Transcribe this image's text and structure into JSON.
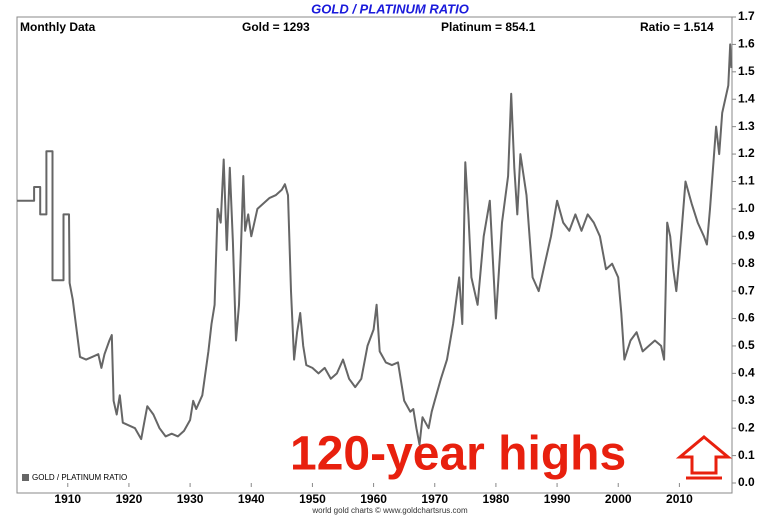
{
  "chart_data": {
    "type": "line",
    "title": "GOLD / PLATINUM RATIO",
    "header": [
      "Monthly Data",
      "Gold = 1293",
      "Platinum = 854.1",
      "Ratio = 1.514"
    ],
    "annotation": "120-year highs",
    "footer": "world gold charts © www.goldchartsrus.com",
    "xlim": [
      1901.7,
      2018.6
    ],
    "xticks": [
      1910,
      1920,
      1930,
      1940,
      1950,
      1960,
      1970,
      1980,
      1990,
      2000,
      2010
    ],
    "ylim": [
      0,
      1.7
    ],
    "yticks": [
      {
        "value": 0,
        "label": "0.0"
      },
      0.1,
      0.2,
      0.3,
      0.4,
      0.5,
      0.6,
      0.7,
      0.8,
      0.9,
      {
        "value": 1,
        "label": "1.0"
      },
      1.1,
      1.2,
      1.3,
      1.4,
      1.5,
      1.6,
      1.7
    ],
    "grid": false,
    "legend": "lower left",
    "series": [
      {
        "name": "GOLD / PLATINUM RATIO",
        "color": "#666666",
        "x": [
          1901.7,
          1904.5,
          1904.5,
          1905.5,
          1905.5,
          1906.5,
          1906.5,
          1907.5,
          1907.5,
          1909.3,
          1909.3,
          1910.2,
          1910.3,
          1910.8,
          1911.5,
          1912,
          1913,
          1914,
          1915,
          1915.5,
          1916,
          1916.8,
          1917.2,
          1917.5,
          1918,
          1918.5,
          1919,
          1920,
          1921,
          1922,
          1922.5,
          1923,
          1924,
          1925,
          1926,
          1927,
          1928,
          1929,
          1930,
          1930.5,
          1931,
          1932,
          1933,
          1933.5,
          1934,
          1934.5,
          1935,
          1935.5,
          1936,
          1936.5,
          1937,
          1937.5,
          1938,
          1938.3,
          1938.7,
          1939,
          1939.5,
          1940,
          1941,
          1942,
          1943,
          1944,
          1945,
          1945.5,
          1946,
          1946.5,
          1947,
          1947.5,
          1948,
          1948.5,
          1949,
          1950,
          1951,
          1952,
          1953,
          1954,
          1955,
          1956,
          1957,
          1958,
          1959,
          1960,
          1960.5,
          1961,
          1962,
          1963,
          1964,
          1965,
          1966,
          1966.5,
          1967,
          1967.5,
          1968,
          1969,
          1969.5,
          1970,
          1971,
          1972,
          1973,
          1974,
          1974.5,
          1975,
          1975.5,
          1976,
          1977,
          1978,
          1979,
          1980,
          1981,
          1982,
          1982.5,
          1983,
          1983.5,
          1984,
          1985,
          1986,
          1987,
          1988,
          1989,
          1990,
          1991,
          1992,
          1993,
          1994,
          1995,
          1996,
          1997,
          1998,
          1999,
          2000,
          2000.5,
          2001,
          2002,
          2003,
          2004,
          2005,
          2006,
          2007,
          2007.5,
          2008,
          2008.5,
          2009,
          2009.5,
          2010,
          2011,
          2012,
          2013,
          2014,
          2014.5,
          2015,
          2016,
          2016.5,
          2017,
          2018,
          2018.3,
          2018.5
        ],
        "values": [
          1.03,
          1.03,
          1.08,
          1.08,
          0.98,
          0.98,
          1.21,
          1.21,
          0.74,
          0.74,
          0.98,
          0.98,
          0.73,
          0.67,
          0.55,
          0.46,
          0.45,
          0.46,
          0.47,
          0.42,
          0.47,
          0.52,
          0.54,
          0.3,
          0.25,
          0.32,
          0.22,
          0.21,
          0.2,
          0.16,
          0.22,
          0.28,
          0.25,
          0.2,
          0.17,
          0.18,
          0.17,
          0.19,
          0.23,
          0.3,
          0.27,
          0.32,
          0.48,
          0.58,
          0.65,
          1.0,
          0.95,
          1.18,
          0.85,
          1.15,
          0.88,
          0.52,
          0.65,
          0.85,
          1.12,
          0.92,
          0.98,
          0.9,
          1.0,
          1.02,
          1.04,
          1.05,
          1.07,
          1.09,
          1.05,
          0.7,
          0.45,
          0.55,
          0.62,
          0.5,
          0.43,
          0.42,
          0.4,
          0.42,
          0.38,
          0.4,
          0.45,
          0.38,
          0.35,
          0.38,
          0.5,
          0.56,
          0.65,
          0.48,
          0.44,
          0.43,
          0.44,
          0.3,
          0.26,
          0.27,
          0.2,
          0.14,
          0.24,
          0.2,
          0.26,
          0.3,
          0.38,
          0.45,
          0.58,
          0.75,
          0.58,
          1.17,
          0.98,
          0.75,
          0.65,
          0.9,
          1.03,
          0.6,
          0.95,
          1.12,
          1.42,
          1.15,
          0.98,
          1.2,
          1.05,
          0.75,
          0.7,
          0.8,
          0.9,
          1.03,
          0.95,
          0.92,
          0.98,
          0.92,
          0.98,
          0.95,
          0.9,
          0.78,
          0.8,
          0.75,
          0.62,
          0.45,
          0.52,
          0.55,
          0.48,
          0.5,
          0.52,
          0.5,
          0.45,
          0.95,
          0.9,
          0.78,
          0.7,
          0.82,
          1.1,
          1.02,
          0.95,
          0.9,
          0.87,
          1.0,
          1.3,
          1.2,
          1.35,
          1.45,
          1.6,
          1.514
        ]
      }
    ]
  }
}
